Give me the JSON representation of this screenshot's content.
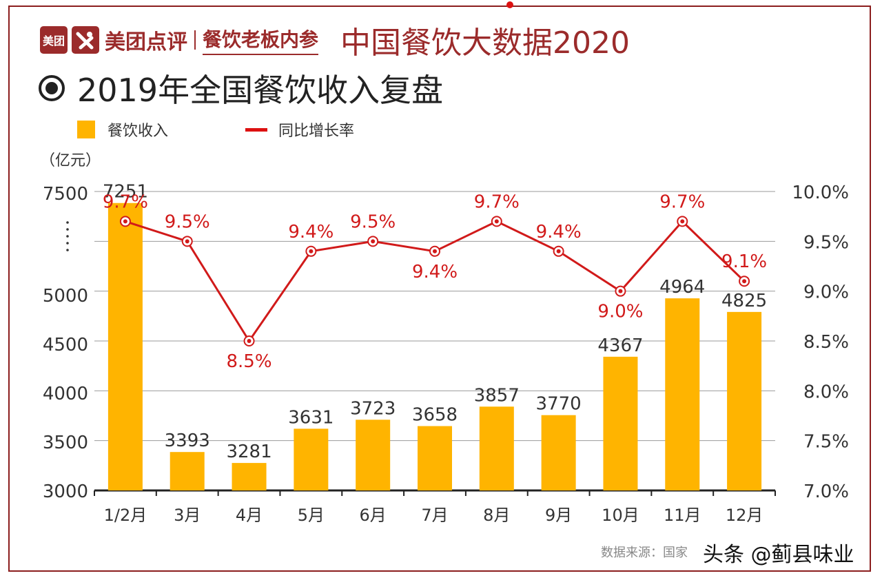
{
  "header": {
    "logo_mark": "美团",
    "brand_name": "美团点评",
    "brand_separator": "|",
    "brand_sub": "餐饮老板内参",
    "headline": "中国餐饮大数据2020"
  },
  "title": "2019年全国餐饮收入复盘",
  "unit": "（亿元）",
  "legend": {
    "bar_label": "餐饮收入",
    "line_label": "同比增长率"
  },
  "source_text": "数据来源：国家",
  "watermark": "头条 @蓟县味业",
  "colors": {
    "bar": "#ffb400",
    "line": "#d11a1a",
    "frame": "#8b1d1d",
    "brand": "#9b2b2b"
  },
  "chart_data": {
    "type": "bar+line",
    "categories": [
      "1/2月",
      "3月",
      "4月",
      "5月",
      "6月",
      "7月",
      "8月",
      "9月",
      "10月",
      "11月",
      "12月"
    ],
    "series": [
      {
        "name": "餐饮收入",
        "type": "bar",
        "axis": "left",
        "values": [
          7251,
          3393,
          3281,
          3631,
          3723,
          3658,
          3857,
          3770,
          4367,
          4964,
          4825
        ],
        "labels": [
          "7251",
          "3393",
          "3281",
          "3631",
          "3723",
          "3658",
          "3857",
          "3770",
          "4367",
          "4964",
          "4825"
        ]
      },
      {
        "name": "同比增长率",
        "type": "line",
        "axis": "right",
        "values": [
          9.7,
          9.5,
          8.5,
          9.4,
          9.5,
          9.4,
          9.7,
          9.4,
          9.0,
          9.7,
          9.1
        ],
        "labels": [
          "9.7%",
          "9.5%",
          "8.5%",
          "9.4%",
          "9.5%",
          "9.4%",
          "9.7%",
          "9.4%",
          "9.0%",
          "9.7%",
          "9.1%"
        ]
      }
    ],
    "y_left_ticks": [
      "3000",
      "3500",
      "4000",
      "4500",
      "5000",
      "7500"
    ],
    "y_left_break": "……",
    "y_right_ticks": [
      "7.0%",
      "7.5%",
      "8.0%",
      "8.5%",
      "9.0%",
      "9.5%",
      "10.0%"
    ],
    "y_right_range": [
      7.0,
      10.0
    ],
    "grid": true
  }
}
